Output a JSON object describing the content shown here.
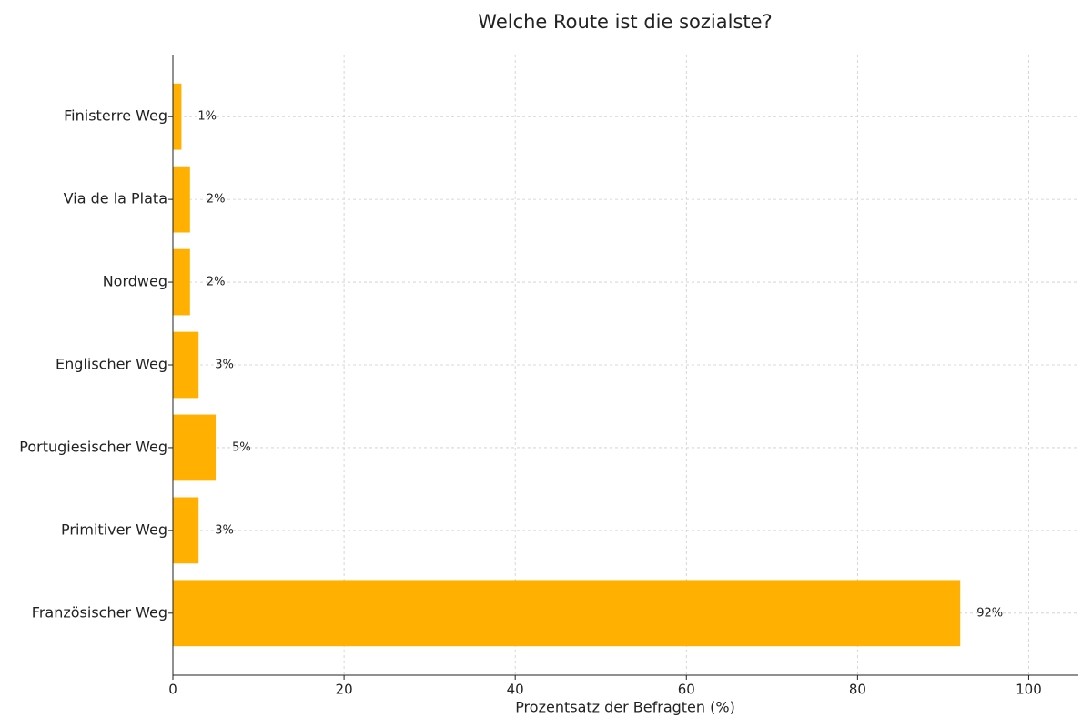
{
  "chart_data": {
    "type": "barh",
    "title": "Welche Route ist die sozialste?",
    "x_label": "Prozentsatz der Befragten (%)",
    "categories": [
      "Französischer Weg",
      "Primitiver Weg",
      "Portugiesischer Weg",
      "Englischer Weg",
      "Nordweg",
      "Via de la Plata",
      "Finisterre Weg"
    ],
    "values": [
      92,
      3,
      5,
      3,
      2,
      2,
      1
    ],
    "value_labels": [
      "92%",
      "3%",
      "5%",
      "3%",
      "2%",
      "2%",
      "1%"
    ],
    "color": "#ffb000",
    "xlim": [
      0,
      105.8
    ],
    "xticks": [
      0,
      20,
      40,
      60,
      80,
      100
    ],
    "grid": true
  }
}
